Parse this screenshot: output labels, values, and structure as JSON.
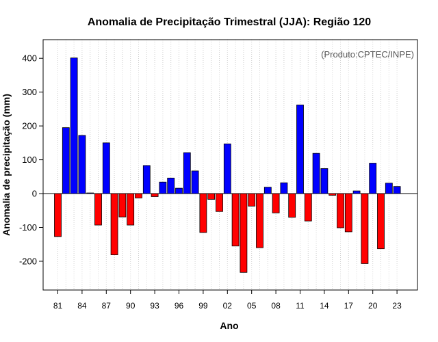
{
  "chart_data": {
    "type": "bar",
    "title": "Anomalia de Precipitação Trimestral (JJA): Região 120",
    "xlabel": "Ano",
    "ylabel": "Anomalia de precipitação (mm)",
    "credit": "(Produto:CPTEC/INPE)",
    "ylim": [
      -285,
      455
    ],
    "yticks": [
      -200,
      -100,
      0,
      100,
      200,
      300,
      400
    ],
    "xtick_labels": [
      "81",
      "84",
      "87",
      "90",
      "93",
      "96",
      "99",
      "02",
      "05",
      "08",
      "11",
      "14",
      "17",
      "20",
      "23"
    ],
    "colors": {
      "positive": "#0000ff",
      "negative": "#ff0000",
      "grid": "#d0d0d0"
    },
    "categories": [
      1981,
      1982,
      1983,
      1984,
      1985,
      1986,
      1987,
      1988,
      1989,
      1990,
      1991,
      1992,
      1993,
      1994,
      1995,
      1996,
      1997,
      1998,
      1999,
      2000,
      2001,
      2002,
      2003,
      2004,
      2005,
      2006,
      2007,
      2008,
      2009,
      2010,
      2011,
      2012,
      2013,
      2014,
      2015,
      2016,
      2017,
      2018,
      2019,
      2020,
      2021,
      2022,
      2023
    ],
    "values": [
      -127,
      195,
      401,
      172,
      2,
      -93,
      150,
      -181,
      -69,
      -93,
      -13,
      83,
      -9,
      34,
      46,
      16,
      121,
      67,
      -115,
      -17,
      -53,
      147,
      -155,
      -233,
      -37,
      -160,
      19,
      -57,
      32,
      -70,
      262,
      -81,
      119,
      74,
      -5,
      -101,
      -113,
      8,
      -207,
      90,
      -163,
      31,
      21
    ]
  }
}
